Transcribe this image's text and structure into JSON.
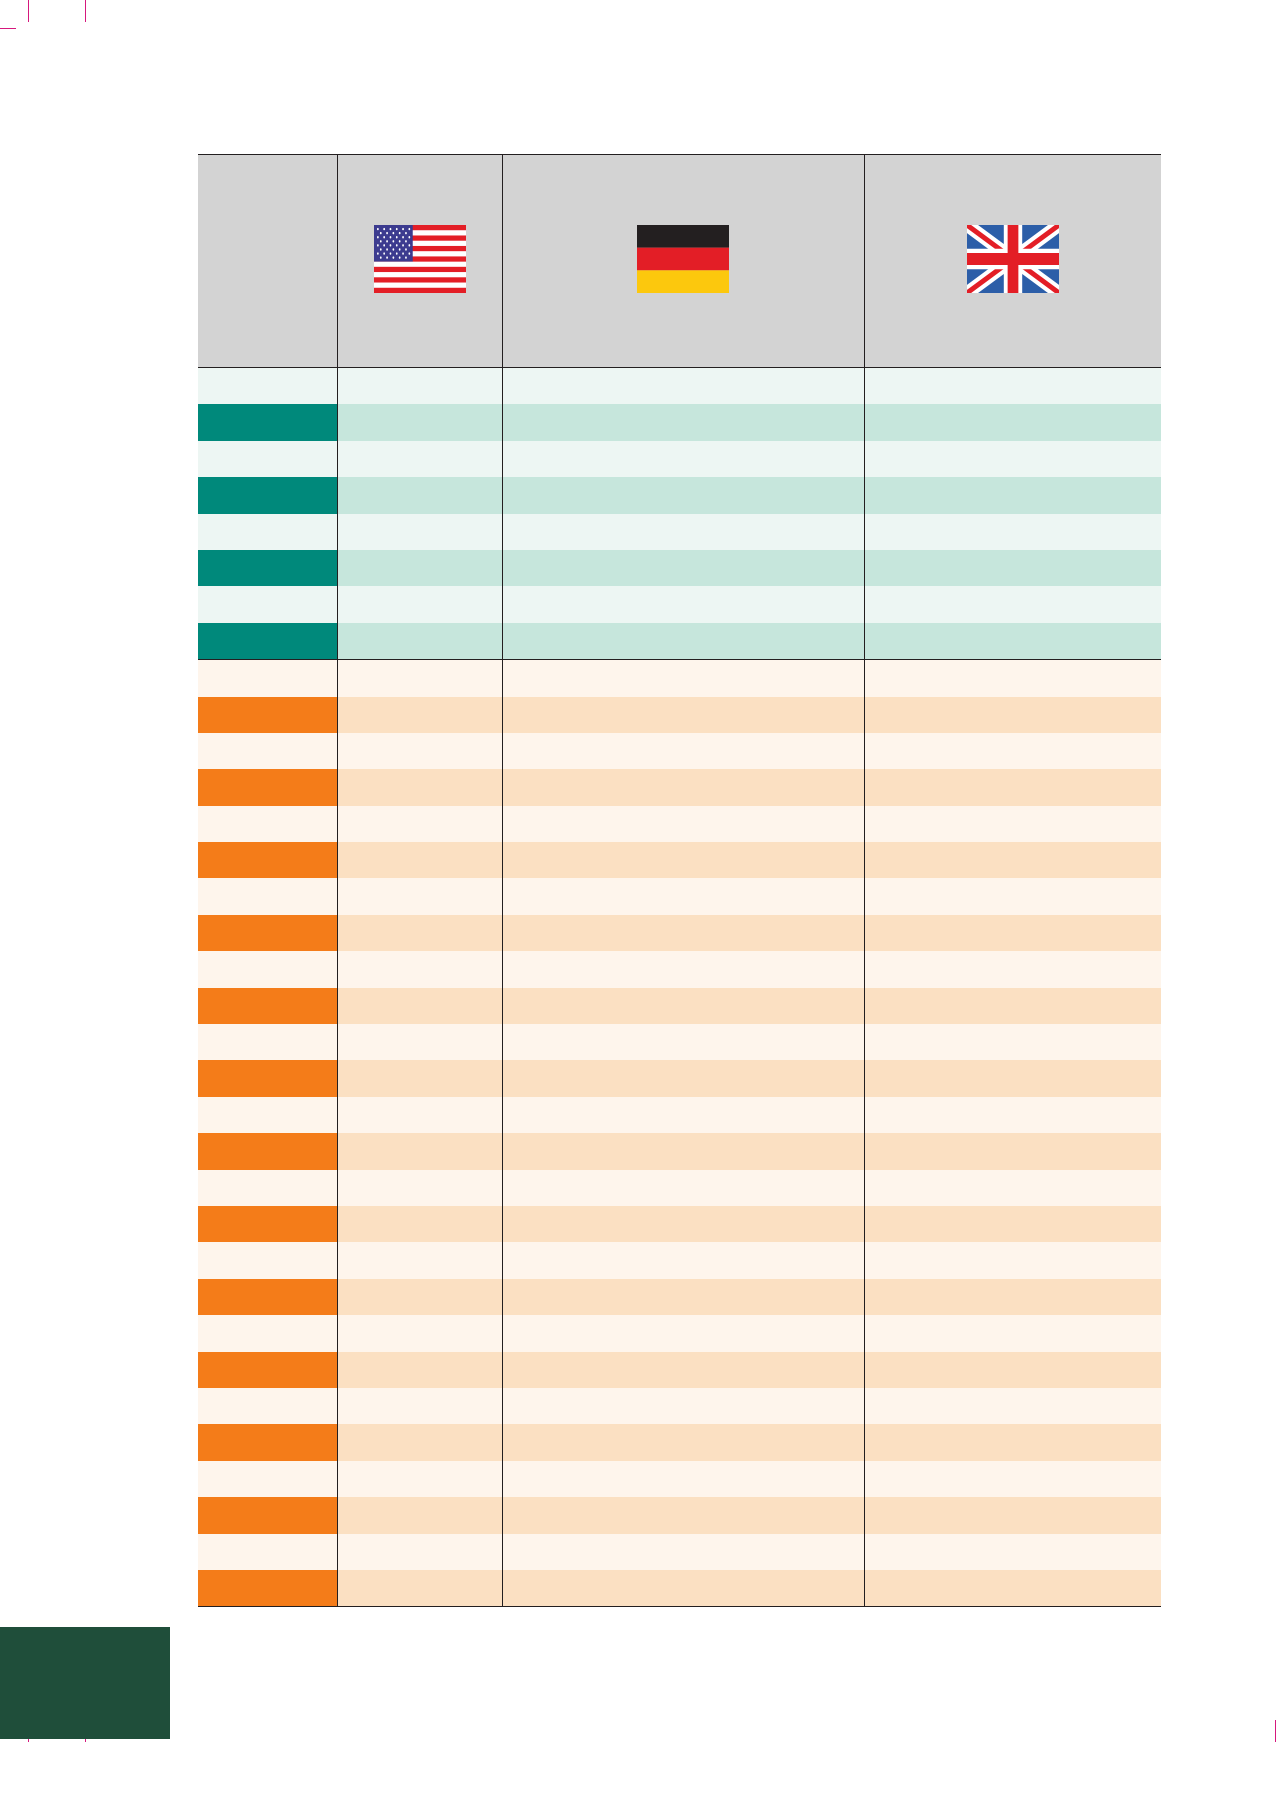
{
  "colors": {
    "header_bg": "#d3d3d3",
    "teal_dark": "#00897b",
    "teal_light": "#edf6f3",
    "teal_mid": "#c6e6dc",
    "orange_dark": "#f47c19",
    "orange_light": "#fef5ec",
    "orange_mid": "#fbe0c2",
    "corner_block": "#1f4e3a",
    "crop_marks": "#d6187d"
  },
  "header": {
    "flags": [
      {
        "name": "united-states-flag-icon"
      },
      {
        "name": "germany-flag-icon"
      },
      {
        "name": "united-kingdom-flag-icon"
      }
    ]
  },
  "table": {
    "teal_rows": [
      {
        "label": "",
        "cells": [
          "",
          "",
          ""
        ]
      },
      {
        "label": "",
        "cells": [
          "",
          "",
          ""
        ]
      },
      {
        "label": "",
        "cells": [
          "",
          "",
          ""
        ]
      },
      {
        "label": "",
        "cells": [
          "",
          "",
          ""
        ]
      },
      {
        "label": "",
        "cells": [
          "",
          "",
          ""
        ]
      },
      {
        "label": "",
        "cells": [
          "",
          "",
          ""
        ]
      },
      {
        "label": "",
        "cells": [
          "",
          "",
          ""
        ]
      },
      {
        "label": "",
        "cells": [
          "",
          "",
          ""
        ]
      }
    ],
    "orange_rows": [
      {
        "label": "",
        "cells": [
          "",
          "",
          ""
        ]
      },
      {
        "label": "",
        "cells": [
          "",
          "",
          ""
        ]
      },
      {
        "label": "",
        "cells": [
          "",
          "",
          ""
        ]
      },
      {
        "label": "",
        "cells": [
          "",
          "",
          ""
        ]
      },
      {
        "label": "",
        "cells": [
          "",
          "",
          ""
        ]
      },
      {
        "label": "",
        "cells": [
          "",
          "",
          ""
        ]
      },
      {
        "label": "",
        "cells": [
          "",
          "",
          ""
        ]
      },
      {
        "label": "",
        "cells": [
          "",
          "",
          ""
        ]
      },
      {
        "label": "",
        "cells": [
          "",
          "",
          ""
        ]
      },
      {
        "label": "",
        "cells": [
          "",
          "",
          ""
        ]
      },
      {
        "label": "",
        "cells": [
          "",
          "",
          ""
        ]
      },
      {
        "label": "",
        "cells": [
          "",
          "",
          ""
        ]
      },
      {
        "label": "",
        "cells": [
          "",
          "",
          ""
        ]
      },
      {
        "label": "",
        "cells": [
          "",
          "",
          ""
        ]
      },
      {
        "label": "",
        "cells": [
          "",
          "",
          ""
        ]
      },
      {
        "label": "",
        "cells": [
          "",
          "",
          ""
        ]
      },
      {
        "label": "",
        "cells": [
          "",
          "",
          ""
        ]
      },
      {
        "label": "",
        "cells": [
          "",
          "",
          ""
        ]
      },
      {
        "label": "",
        "cells": [
          "",
          "",
          ""
        ]
      },
      {
        "label": "",
        "cells": [
          "",
          "",
          ""
        ]
      },
      {
        "label": "",
        "cells": [
          "",
          "",
          ""
        ]
      },
      {
        "label": "",
        "cells": [
          "",
          "",
          ""
        ]
      },
      {
        "label": "",
        "cells": [
          "",
          "",
          ""
        ]
      },
      {
        "label": "",
        "cells": [
          "",
          "",
          ""
        ]
      },
      {
        "label": "",
        "cells": [
          "",
          "",
          ""
        ]
      },
      {
        "label": "",
        "cells": [
          "",
          "",
          ""
        ]
      }
    ]
  }
}
